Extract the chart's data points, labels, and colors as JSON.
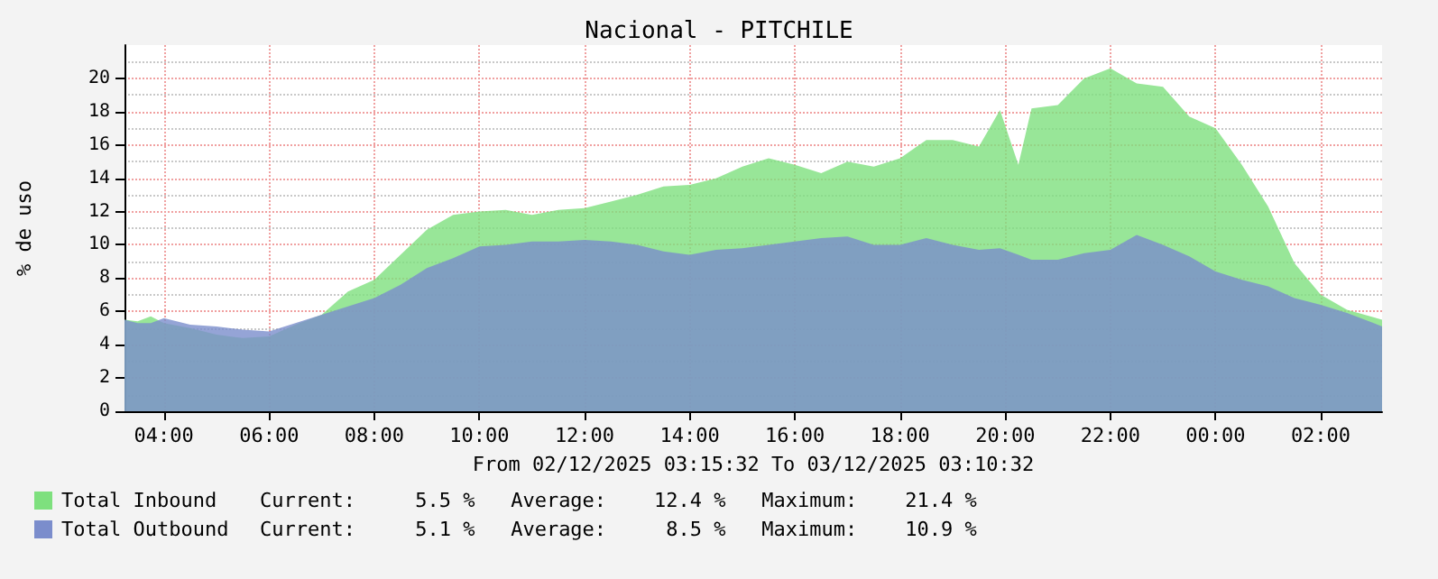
{
  "chart_data": {
    "type": "area",
    "title": "Nacional - PITCHILE",
    "ylabel": "% de uso",
    "xlabel": "From 02/12/2025 03:15:32 To 03/12/2025 03:10:32",
    "x": [
      "2025-12-02T03:15",
      "2025-12-02T03:30",
      "2025-12-02T03:45",
      "2025-12-02T04:00",
      "2025-12-02T04:30",
      "2025-12-02T05:00",
      "2025-12-02T05:30",
      "2025-12-02T06:00",
      "2025-12-02T06:30",
      "2025-12-02T07:00",
      "2025-12-02T07:30",
      "2025-12-02T08:00",
      "2025-12-02T08:30",
      "2025-12-02T09:00",
      "2025-12-02T09:30",
      "2025-12-02T10:00",
      "2025-12-02T10:30",
      "2025-12-02T11:00",
      "2025-12-02T11:30",
      "2025-12-02T12:00",
      "2025-12-02T12:30",
      "2025-12-02T13:00",
      "2025-12-02T13:30",
      "2025-12-02T14:00",
      "2025-12-02T14:30",
      "2025-12-02T15:00",
      "2025-12-02T15:30",
      "2025-12-02T16:00",
      "2025-12-02T16:30",
      "2025-12-02T17:00",
      "2025-12-02T17:30",
      "2025-12-02T18:00",
      "2025-12-02T18:30",
      "2025-12-02T19:00",
      "2025-12-02T19:30",
      "2025-12-02T19:54",
      "2025-12-02T20:15",
      "2025-12-02T20:30",
      "2025-12-02T21:00",
      "2025-12-02T21:30",
      "2025-12-02T22:00",
      "2025-12-02T22:30",
      "2025-12-02T23:00",
      "2025-12-02T23:30",
      "2025-12-03T00:00",
      "2025-12-03T00:30",
      "2025-12-03T01:00",
      "2025-12-03T01:30",
      "2025-12-03T02:00",
      "2025-12-03T02:30",
      "2025-12-03T03:10"
    ],
    "series": [
      {
        "name": "Total Inbound",
        "color": "#7ee07e",
        "values": [
          5.5,
          5.4,
          5.7,
          5.3,
          5.0,
          4.6,
          4.4,
          4.5,
          5.2,
          5.8,
          7.2,
          7.9,
          9.4,
          10.9,
          11.8,
          12.0,
          12.1,
          11.8,
          12.1,
          12.2,
          12.6,
          13.0,
          13.5,
          13.6,
          14.0,
          14.7,
          15.2,
          14.8,
          14.3,
          15.0,
          14.7,
          15.2,
          16.3,
          16.3,
          15.9,
          18.1,
          14.8,
          18.2,
          18.4,
          20.0,
          20.6,
          19.7,
          19.5,
          17.7,
          17.0,
          14.8,
          12.3,
          8.9,
          7.0,
          6.1,
          5.5
        ]
      },
      {
        "name": "Total Outbound",
        "color": "#7b8dcc",
        "values": [
          5.5,
          5.3,
          5.3,
          5.6,
          5.2,
          5.1,
          4.9,
          4.8,
          5.3,
          5.8,
          6.3,
          6.8,
          7.6,
          8.6,
          9.2,
          9.9,
          10.0,
          10.2,
          10.2,
          10.3,
          10.2,
          10.0,
          9.6,
          9.4,
          9.7,
          9.8,
          10.0,
          10.2,
          10.4,
          10.5,
          10.0,
          10.0,
          10.4,
          10.0,
          9.7,
          9.8,
          9.4,
          9.1,
          9.1,
          9.5,
          9.7,
          10.6,
          10.0,
          9.3,
          8.4,
          7.9,
          7.5,
          6.8,
          6.4,
          5.9,
          5.1
        ]
      }
    ],
    "annotations": [
      "Current:     5.5 %   Average:    12.4 %   Maximum:    21.4 %",
      "Current:     5.1 %   Average:     8.5 %   Maximum:    10.9 %"
    ],
    "xlim": [
      "2025-12-02T03:15",
      "2025-12-03T03:10"
    ],
    "xticks": [
      {
        "value": "2025-12-02T04:00",
        "label": "04:00"
      },
      {
        "value": "2025-12-02T06:00",
        "label": "06:00"
      },
      {
        "value": "2025-12-02T08:00",
        "label": "08:00"
      },
      {
        "value": "2025-12-02T10:00",
        "label": "10:00"
      },
      {
        "value": "2025-12-02T12:00",
        "label": "12:00"
      },
      {
        "value": "2025-12-02T14:00",
        "label": "14:00"
      },
      {
        "value": "2025-12-02T16:00",
        "label": "16:00"
      },
      {
        "value": "2025-12-02T18:00",
        "label": "18:00"
      },
      {
        "value": "2025-12-02T20:00",
        "label": "20:00"
      },
      {
        "value": "2025-12-02T22:00",
        "label": "22:00"
      },
      {
        "value": "2025-12-03T00:00",
        "label": "00:00"
      },
      {
        "value": "2025-12-03T02:00",
        "label": "02:00"
      }
    ],
    "ylim": [
      0,
      22
    ],
    "yticks": [
      0,
      2,
      4,
      6,
      8,
      10,
      12,
      14,
      16,
      18,
      20
    ],
    "grid": true,
    "legend": "bottom left"
  }
}
